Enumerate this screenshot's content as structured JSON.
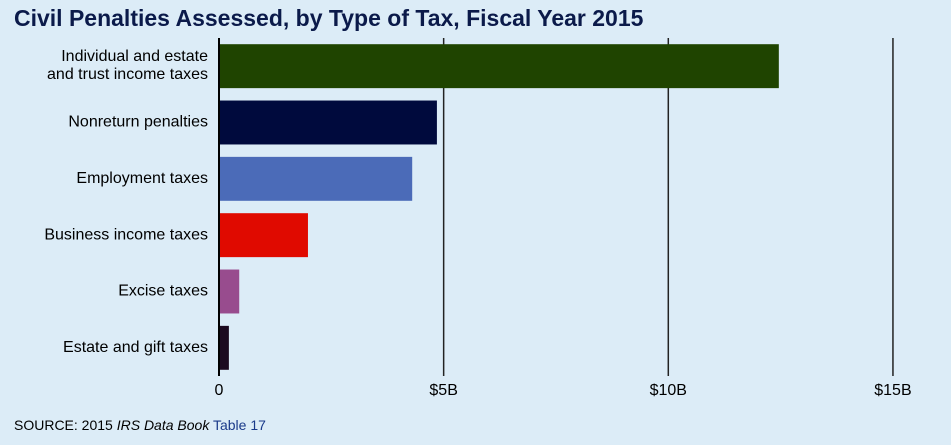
{
  "chart_data": {
    "type": "bar",
    "orientation": "horizontal",
    "title": "Civil Penalties Assessed, by Type of Tax, Fiscal Year 2015",
    "categories": [
      "Individual and estate\nand trust income taxes",
      "Nonreturn penalties",
      "Employment taxes",
      "Business income taxes",
      "Excise taxes",
      "Estate and gift taxes"
    ],
    "values": [
      12.46,
      4.85,
      4.3,
      1.98,
      0.45,
      0.22
    ],
    "colors": [
      "#1f4400",
      "#000a3d",
      "#4b6bb8",
      "#e00a00",
      "#984c8e",
      "#1c0a20"
    ],
    "xlim": [
      0,
      15.4
    ],
    "xticks": [
      0,
      {
        "value": 5,
        "label": "$5B"
      },
      {
        "value": 10,
        "label": "$10B"
      },
      {
        "value": 15,
        "label": "$15B"
      }
    ],
    "grid": true,
    "source": {
      "prefix": "SOURCE: 2015",
      "book": "IRS Data Book",
      "link": "Table 17"
    }
  }
}
